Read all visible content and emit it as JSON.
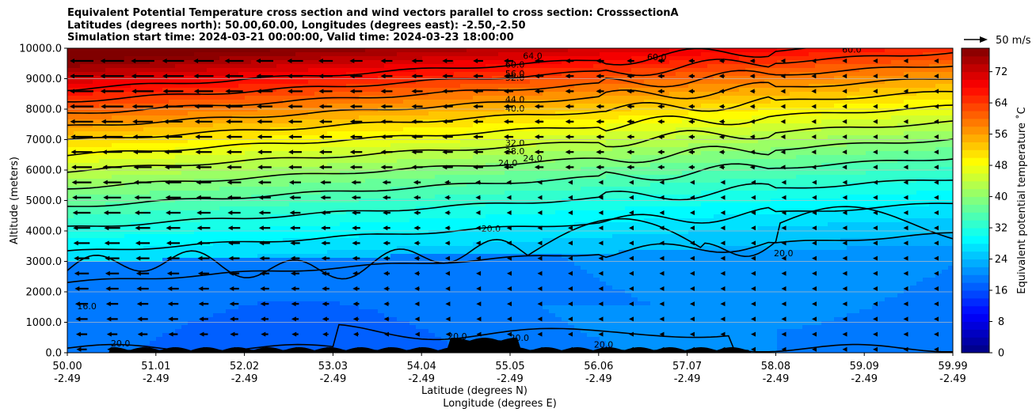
{
  "titles": {
    "line1": "Equivalent Potential Temperature cross section and wind vectors parallel to cross section: CrosssectionA",
    "line2": "Latitudes (degrees north): 50.00,60.00, Longitudes (degrees east): -2.50,-2.50",
    "line3": "Simulation start time: 2024-03-21 00:00:00, Valid time: 2024-03-23 18:00:00"
  },
  "quiver_key": {
    "label": "50 m/s"
  },
  "chart_data": {
    "type": "heatmap",
    "title": "Equivalent Potential Temperature cross section and wind vectors parallel to cross section: CrosssectionA",
    "xlabel": "Latitude (degrees N)",
    "xlabel2": "Longitude (degrees E)",
    "ylabel": "Altitude (meters)",
    "colorbar_label": "Equivalent potential temperature ˚C",
    "xlim": [
      50.0,
      59.99
    ],
    "ylim": [
      0,
      10000
    ],
    "x_ticks_lat": [
      "50.00",
      "51.01",
      "52.02",
      "53.03",
      "54.04",
      "55.05",
      "56.06",
      "57.07",
      "58.08",
      "59.09",
      "59.99"
    ],
    "x_ticks_lon": [
      "-2.49",
      "-2.49",
      "-2.49",
      "-2.49",
      "-2.49",
      "-2.49",
      "-2.49",
      "-2.49",
      "-2.49",
      "-2.49",
      "-2.49"
    ],
    "y_ticks": [
      "0.0",
      "1000.0",
      "2000.0",
      "3000.0",
      "4000.0",
      "5000.0",
      "6000.0",
      "7000.0",
      "8000.0",
      "9000.0",
      "10000.0"
    ],
    "colorbar_ticks": [
      "0",
      "8",
      "16",
      "24",
      "32",
      "40",
      "48",
      "56",
      "64",
      "72"
    ],
    "colorbar_range": [
      0,
      78
    ],
    "contour_labels": [
      {
        "text": "64.0",
        "lat": 55.25,
        "alt": 9750
      },
      {
        "text": "60.0",
        "lat": 55.05,
        "alt": 9470
      },
      {
        "text": "56.0",
        "lat": 55.05,
        "alt": 9170
      },
      {
        "text": "52.0",
        "lat": 55.05,
        "alt": 9040
      },
      {
        "text": "60.0",
        "lat": 56.65,
        "alt": 9720
      },
      {
        "text": "60.0",
        "lat": 58.85,
        "alt": 9960
      },
      {
        "text": "44.0",
        "lat": 55.05,
        "alt": 8330
      },
      {
        "text": "40.0",
        "lat": 55.05,
        "alt": 8030
      },
      {
        "text": "32.0",
        "lat": 55.05,
        "alt": 6900
      },
      {
        "text": "28.0",
        "lat": 55.05,
        "alt": 6620
      },
      {
        "text": "24.0",
        "lat": 54.97,
        "alt": 6240
      },
      {
        "text": "24.0",
        "lat": 55.25,
        "alt": 6390
      },
      {
        "text": "20.0",
        "lat": 54.78,
        "alt": 4080
      },
      {
        "text": "20.0",
        "lat": 58.08,
        "alt": 3270
      },
      {
        "text": "16.0",
        "lat": 50.22,
        "alt": 1530
      },
      {
        "text": "20.0",
        "lat": 50.6,
        "alt": 310
      },
      {
        "text": "20.0",
        "lat": 54.4,
        "alt": 550
      },
      {
        "text": "20.0",
        "lat": 55.1,
        "alt": 500
      },
      {
        "text": "20.0",
        "lat": 56.05,
        "alt": 270
      }
    ],
    "wind_note": "Wind vectors parallel to section point southward (toward lower latitude); strongest in the upper-left region, weakening toward the north and near the surface."
  }
}
